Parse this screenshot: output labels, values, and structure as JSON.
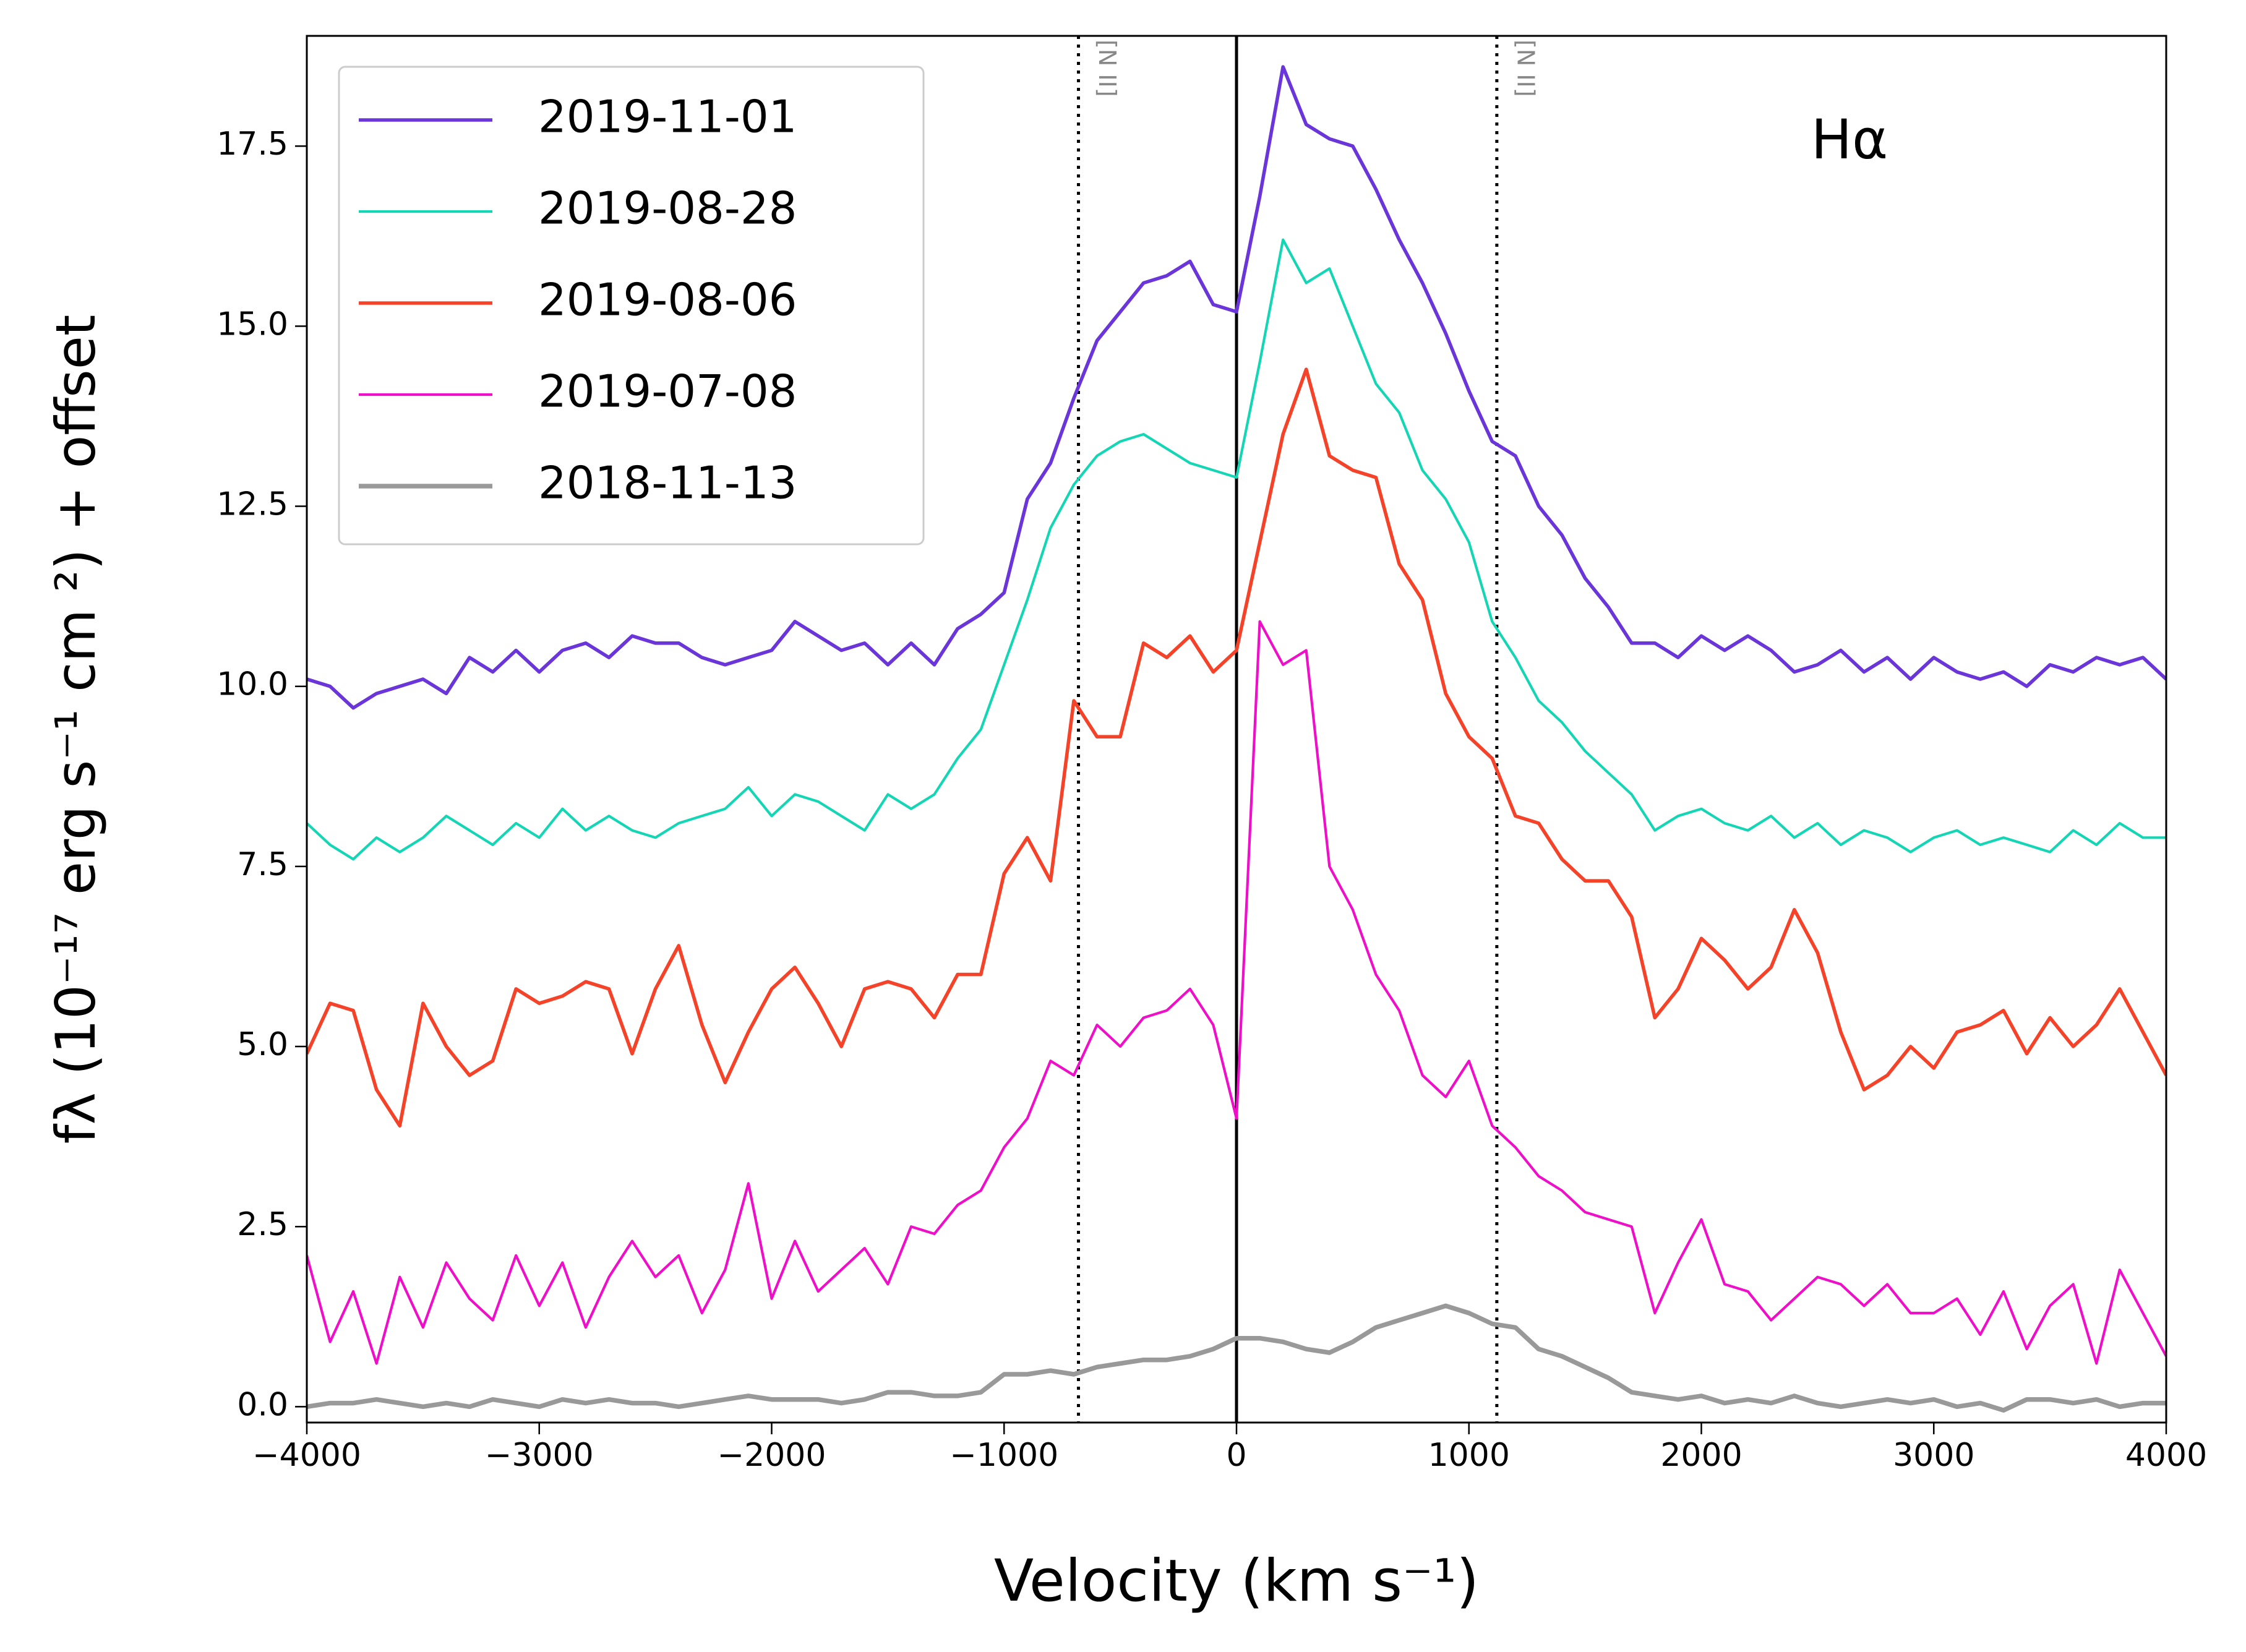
{
  "chart_data": {
    "type": "line",
    "xlabel": "Velocity (km s⁻¹)",
    "ylabel": "fλ (10⁻¹⁷ erg s⁻¹ cm ²) + offset",
    "line_label": "Hα",
    "xlim": [
      -4000,
      4000
    ],
    "ylim": [
      -0.22,
      19.03
    ],
    "xticks": [
      {
        "value": -4000,
        "label": "−4000"
      },
      {
        "value": -3000,
        "label": "−3000"
      },
      {
        "value": -2000,
        "label": "−2000"
      },
      {
        "value": -1000,
        "label": "−1000"
      },
      0,
      1000,
      2000,
      3000,
      4000
    ],
    "yticks": [
      {
        "value": 0,
        "label": "0.0"
      },
      2.5,
      {
        "value": 5,
        "label": "5.0"
      },
      7.5,
      {
        "value": 10,
        "label": "10.0"
      },
      12.5,
      {
        "value": 15,
        "label": "15.0"
      },
      17.5
    ],
    "legend": "upper left",
    "grid": false,
    "vlines": [
      {
        "x": 0,
        "style": "solid",
        "color": "#000000"
      },
      {
        "x": -680,
        "style": "dotted",
        "color": "#000000"
      },
      {
        "x": 1120,
        "style": "dotted",
        "color": "#000000"
      }
    ],
    "annotations": [
      {
        "text": "[N II]",
        "x": -680
      },
      {
        "text": "[N II]",
        "x": 1120
      }
    ],
    "x": [
      -4000,
      -3900,
      -3800,
      -3700,
      -3600,
      -3500,
      -3400,
      -3300,
      -3200,
      -3100,
      -3000,
      -2900,
      -2800,
      -2700,
      -2600,
      -2500,
      -2400,
      -2300,
      -2200,
      -2100,
      -2000,
      -1900,
      -1800,
      -1700,
      -1600,
      -1500,
      -1400,
      -1300,
      -1200,
      -1100,
      -1000,
      -900,
      -800,
      -700,
      -600,
      -500,
      -400,
      -300,
      -200,
      -100,
      0,
      100,
      200,
      300,
      400,
      500,
      600,
      700,
      800,
      900,
      1000,
      1100,
      1200,
      1300,
      1400,
      1500,
      1600,
      1700,
      1800,
      1900,
      2000,
      2100,
      2200,
      2300,
      2400,
      2500,
      2600,
      2700,
      2800,
      2900,
      3000,
      3100,
      3200,
      3300,
      3400,
      3500,
      3600,
      3700,
      3800,
      3900,
      4000
    ],
    "series": [
      {
        "name": "2019-11-01",
        "color": "#6a35d9",
        "linewidth": 2.4,
        "values": [
          10.1,
          10.0,
          9.7,
          9.9,
          10.0,
          10.1,
          9.9,
          10.4,
          10.2,
          10.5,
          10.2,
          10.5,
          10.6,
          10.4,
          10.7,
          10.6,
          10.6,
          10.4,
          10.3,
          10.4,
          10.5,
          10.9,
          10.7,
          10.5,
          10.6,
          10.3,
          10.6,
          10.3,
          10.8,
          11.0,
          11.3,
          12.6,
          13.1,
          14.0,
          14.8,
          15.2,
          15.6,
          15.7,
          15.9,
          15.3,
          15.2,
          16.8,
          18.6,
          17.8,
          17.6,
          17.5,
          16.9,
          16.2,
          15.6,
          14.9,
          14.1,
          13.4,
          13.2,
          12.5,
          12.1,
          11.5,
          11.1,
          10.6,
          10.6,
          10.4,
          10.7,
          10.5,
          10.7,
          10.5,
          10.2,
          10.3,
          10.5,
          10.2,
          10.4,
          10.1,
          10.4,
          10.2,
          10.1,
          10.2,
          10.0,
          10.3,
          10.2,
          10.4,
          10.3,
          10.4,
          10.1
        ]
      },
      {
        "name": "2019-08-28",
        "color": "#14d6b4",
        "linewidth": 1.8,
        "values": [
          8.1,
          7.8,
          7.6,
          7.9,
          7.7,
          7.9,
          8.2,
          8.0,
          7.8,
          8.1,
          7.9,
          8.3,
          8.0,
          8.2,
          8.0,
          7.9,
          8.1,
          8.2,
          8.3,
          8.6,
          8.2,
          8.5,
          8.4,
          8.2,
          8.0,
          8.5,
          8.3,
          8.5,
          9.0,
          9.4,
          10.3,
          11.2,
          12.2,
          12.8,
          13.2,
          13.4,
          13.5,
          13.3,
          13.1,
          13.0,
          12.9,
          14.5,
          16.2,
          15.6,
          15.8,
          15.0,
          14.2,
          13.8,
          13.0,
          12.6,
          12.0,
          10.9,
          10.4,
          9.8,
          9.5,
          9.1,
          8.8,
          8.5,
          8.0,
          8.2,
          8.3,
          8.1,
          8.0,
          8.2,
          7.9,
          8.1,
          7.8,
          8.0,
          7.9,
          7.7,
          7.9,
          8.0,
          7.8,
          7.9,
          7.8,
          7.7,
          8.0,
          7.8,
          8.1,
          7.9,
          7.9
        ]
      },
      {
        "name": "2019-08-06",
        "color": "#f5432a",
        "linewidth": 2.4,
        "values": [
          4.9,
          5.6,
          5.5,
          4.4,
          3.9,
          5.6,
          5.0,
          4.6,
          4.8,
          5.8,
          5.6,
          5.7,
          5.9,
          5.8,
          4.9,
          5.8,
          6.4,
          5.3,
          4.5,
          5.2,
          5.8,
          6.1,
          5.6,
          5.0,
          5.8,
          5.9,
          5.8,
          5.4,
          6.0,
          6.0,
          7.4,
          7.9,
          7.3,
          9.8,
          9.3,
          9.3,
          10.6,
          10.4,
          10.7,
          10.2,
          10.5,
          12.0,
          13.5,
          14.4,
          13.2,
          13.0,
          12.9,
          11.7,
          11.2,
          9.9,
          9.3,
          9.0,
          8.2,
          8.1,
          7.6,
          7.3,
          7.3,
          6.8,
          5.4,
          5.8,
          6.5,
          6.2,
          5.8,
          6.1,
          6.9,
          6.3,
          5.2,
          4.4,
          4.6,
          5.0,
          4.7,
          5.2,
          5.3,
          5.5,
          4.9,
          5.4,
          5.0,
          5.3,
          5.8,
          5.2,
          4.6
        ]
      },
      {
        "name": "2019-07-08",
        "color": "#f00fc8",
        "linewidth": 1.8,
        "values": [
          2.1,
          0.9,
          1.6,
          0.6,
          1.8,
          1.1,
          2.0,
          1.5,
          1.2,
          2.1,
          1.4,
          2.0,
          1.1,
          1.8,
          2.3,
          1.8,
          2.1,
          1.3,
          1.9,
          3.1,
          1.5,
          2.3,
          1.6,
          1.9,
          2.2,
          1.7,
          2.5,
          2.4,
          2.8,
          3.0,
          3.6,
          4.0,
          4.8,
          4.6,
          5.3,
          5.0,
          5.4,
          5.5,
          5.8,
          5.3,
          4.0,
          10.9,
          10.3,
          10.5,
          7.5,
          6.9,
          6.0,
          5.5,
          4.6,
          4.3,
          4.8,
          3.9,
          3.6,
          3.2,
          3.0,
          2.7,
          2.6,
          2.5,
          1.3,
          2.0,
          2.6,
          1.7,
          1.6,
          1.2,
          1.5,
          1.8,
          1.7,
          1.4,
          1.7,
          1.3,
          1.3,
          1.5,
          1.0,
          1.6,
          0.8,
          1.4,
          1.7,
          0.6,
          1.9,
          1.3,
          0.7
        ]
      },
      {
        "name": "2018-11-13",
        "color": "#999999",
        "linewidth": 3.2,
        "values": [
          0.0,
          0.05,
          0.05,
          0.1,
          0.05,
          0.0,
          0.05,
          0.0,
          0.1,
          0.05,
          0.0,
          0.1,
          0.05,
          0.1,
          0.05,
          0.05,
          0.0,
          0.05,
          0.1,
          0.15,
          0.1,
          0.1,
          0.1,
          0.05,
          0.1,
          0.2,
          0.2,
          0.15,
          0.15,
          0.2,
          0.45,
          0.45,
          0.5,
          0.45,
          0.55,
          0.6,
          0.65,
          0.65,
          0.7,
          0.8,
          0.95,
          0.95,
          0.9,
          0.8,
          0.75,
          0.9,
          1.1,
          1.2,
          1.3,
          1.4,
          1.3,
          1.15,
          1.1,
          0.8,
          0.7,
          0.55,
          0.4,
          0.2,
          0.15,
          0.1,
          0.15,
          0.05,
          0.1,
          0.05,
          0.15,
          0.05,
          0.0,
          0.05,
          0.1,
          0.05,
          0.1,
          0.0,
          0.05,
          -0.05,
          0.1,
          0.1,
          0.05,
          0.1,
          0.0,
          0.05,
          0.05
        ]
      }
    ]
  }
}
